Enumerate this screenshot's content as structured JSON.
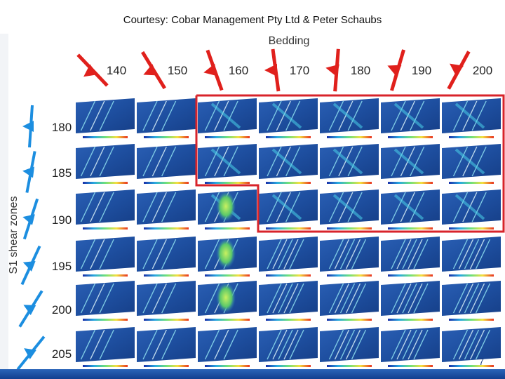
{
  "courtesy": "Courtesy: Cobar Management Pty Ltd & Peter Schaubs",
  "bedding_title": "Bedding",
  "shear_title": "S1 shear zones",
  "bedding_angles": [
    "140",
    "150",
    "160",
    "170",
    "180",
    "190",
    "200"
  ],
  "shear_angles": [
    "180",
    "185",
    "190",
    "195",
    "200",
    "205"
  ],
  "slide_number": "7",
  "colors": {
    "symbol_red": "#e0201c",
    "symbol_blue": "#1c8ee0",
    "highlight": "#d8232a",
    "panel_base": "#1e4fa0"
  }
}
